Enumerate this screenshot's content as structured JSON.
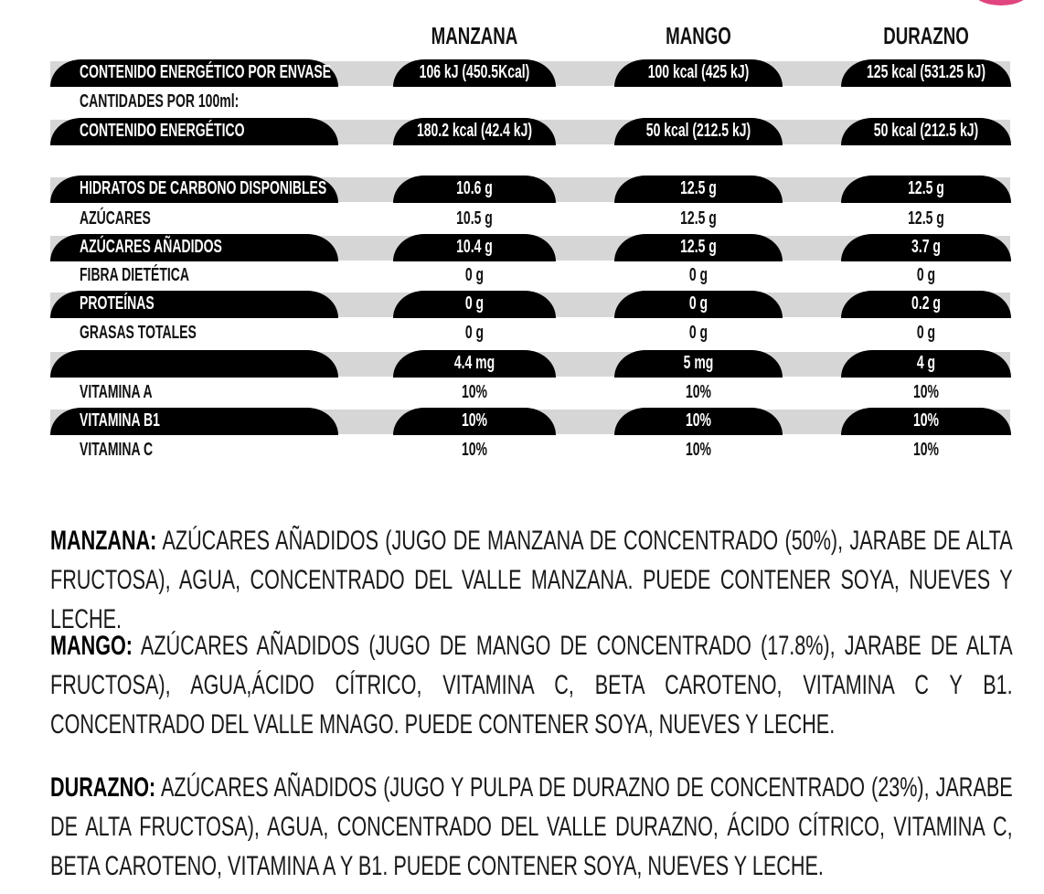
{
  "accent_color": "#e0457f",
  "columns": [
    "MANZANA",
    "MANGO",
    "DURAZNO"
  ],
  "rows": [
    {
      "label": "CONTENIDO ENERGÉTICO POR ENVASE",
      "values": [
        "106 kJ (450.5Kcal)",
        "100 kcal (425  kJ)",
        "125 kcal (531.25 kJ)"
      ],
      "shaded": true
    },
    {
      "label": "CANTIDADES POR 100ml:",
      "values": [
        "",
        "",
        ""
      ],
      "shaded": false
    },
    {
      "label": "CONTENIDO ENERGÉTICO",
      "values": [
        "180.2 kcal (42.4 kJ)",
        "50 kcal (212.5 kJ)",
        "50 kcal (212.5 kJ)"
      ],
      "shaded": true
    },
    {
      "label": "HIDRATOS DE CARBONO DISPONIBLES",
      "values": [
        "10.6 g",
        "12.5 g",
        "12.5 g"
      ],
      "shaded": true
    },
    {
      "label": "AZÚCARES",
      "values": [
        "10.5 g",
        "12.5 g",
        "12.5 g"
      ],
      "shaded": false
    },
    {
      "label": "AZÚCARES AÑADIDOS",
      "values": [
        "10.4 g",
        "12.5 g",
        "3.7 g"
      ],
      "shaded": true
    },
    {
      "label": "FIBRA DIETÉTICA",
      "values": [
        "0 g",
        "0 g",
        "0 g"
      ],
      "shaded": false
    },
    {
      "label": "PROTEÍNAS",
      "values": [
        "0 g",
        "0 g",
        "0.2 g"
      ],
      "shaded": true
    },
    {
      "label": "GRASAS TOTALES",
      "values": [
        "0 g",
        "0 g",
        "0 g"
      ],
      "shaded": false
    },
    {
      "label": "",
      "values": [
        "4.4 mg",
        "5 mg",
        "4 g"
      ],
      "shaded": true
    },
    {
      "label": "VITAMINA A",
      "values": [
        "10%",
        "10%",
        "10%"
      ],
      "shaded": false
    },
    {
      "label": "VITAMINA B1",
      "values": [
        "10%",
        "10%",
        "10%"
      ],
      "shaded": true
    },
    {
      "label": "VITAMINA C",
      "values": [
        "10%",
        "10%",
        "10%"
      ],
      "shaded": false
    }
  ],
  "ingredients": [
    {
      "name": "MANZANA:",
      "text": " AZÚCARES AÑADIDOS (JUGO DE MANZANA DE CONCENTRADO (50%), JARABE DE ALTA FRUCTOSA), AGUA, CONCENTRADO DEL VALLE MANZANA. PUEDE CONTENER SOYA, NUEVES Y LECHE."
    },
    {
      "name": "MANGO:",
      "text": " AZÚCARES AÑADIDOS (JUGO DE MANGO DE CONCENTRADO (17.8%), JARABE DE ALTA FRUCTOSA), AGUA,ÁCIDO CÍTRICO, VITAMINA C, BETA CAROTENO, VITAMINA C Y B1. CONCENTRADO DEL VALLE MNAGO. PUEDE CONTENER SOYA, NUEVES Y LECHE."
    },
    {
      "name": "DURAZNO:",
      "text": " AZÚCARES AÑADIDOS (JUGO Y PULPA DE DURAZNO DE CONCENTRADO (23%), JARABE DE ALTA FRUCTOSA), AGUA, CONCENTRADO DEL VALLE DURAZNO, ÁCIDO CÍTRICO, VITAMINA C, BETA CAROTENO, VITAMINA A Y B1. PUEDE CONTENER SOYA, NUEVES Y LECHE."
    }
  ]
}
